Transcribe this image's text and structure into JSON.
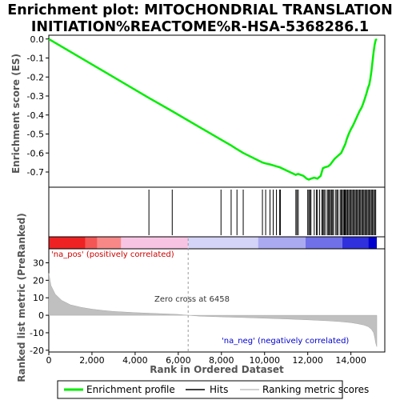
{
  "chart_data": {
    "type": "line",
    "title_lines": [
      "Enrichment plot: MITOCHONDRIAL TRANSLATION",
      "INITIATION%REACTOME%R-HSA-5368286.1"
    ],
    "top_panel": {
      "ylabel": "Enrichment score (ES)",
      "ylim": [
        -0.78,
        0.02
      ],
      "yticks": [
        {
          "value": 0.0,
          "label": "0.0"
        },
        {
          "value": -0.1,
          "label": "-0.1"
        },
        {
          "value": -0.2,
          "label": "-0.2"
        },
        {
          "value": -0.3,
          "label": "-0.3"
        },
        {
          "value": -0.4,
          "label": "-0.4"
        },
        {
          "value": -0.5,
          "label": "-0.5"
        },
        {
          "value": -0.6,
          "label": "-0.6"
        },
        {
          "value": -0.7,
          "label": "-0.7"
        }
      ],
      "series": [
        {
          "name": "Enrichment profile",
          "color": "#00ee00",
          "x": [
            0,
            4640,
            5720,
            7980,
            8450,
            8720,
            9010,
            9900,
            10050,
            10250,
            10400,
            10550,
            10700,
            11450,
            11500,
            11560,
            11800,
            11950,
            12050,
            12150,
            12300,
            12450,
            12600,
            12700,
            12800,
            12950,
            13050,
            13150,
            13250,
            13350,
            13450,
            13550,
            13650,
            13750,
            13800,
            13900,
            14000,
            14100,
            14200,
            14300,
            14400,
            14500,
            14600,
            14700,
            14800,
            14850,
            14900,
            14950,
            15000,
            15050,
            15100,
            15150,
            15200
          ],
          "y": [
            0.0,
            -0.31,
            -0.38,
            -0.53,
            -0.56,
            -0.58,
            -0.6,
            -0.65,
            -0.655,
            -0.66,
            -0.665,
            -0.67,
            -0.675,
            -0.715,
            -0.712,
            -0.71,
            -0.72,
            -0.735,
            -0.74,
            -0.735,
            -0.73,
            -0.735,
            -0.72,
            -0.68,
            -0.675,
            -0.67,
            -0.66,
            -0.645,
            -0.63,
            -0.62,
            -0.61,
            -0.6,
            -0.575,
            -0.55,
            -0.53,
            -0.5,
            -0.475,
            -0.455,
            -0.43,
            -0.405,
            -0.38,
            -0.36,
            -0.33,
            -0.295,
            -0.255,
            -0.24,
            -0.21,
            -0.17,
            -0.12,
            -0.07,
            -0.03,
            -0.005,
            0.0
          ]
        }
      ]
    },
    "hits_panel": {
      "series_name": "Hits",
      "color": "#000000",
      "positions": [
        4640,
        5720,
        7980,
        8450,
        8720,
        9010,
        9900,
        10050,
        10250,
        10400,
        10550,
        10700,
        10730,
        11450,
        11500,
        11560,
        12000,
        12050,
        12100,
        12150,
        12300,
        12400,
        12450,
        12550,
        12650,
        12700,
        12750,
        12800,
        12900,
        12950,
        13000,
        13050,
        13100,
        13150,
        13200,
        13300,
        13350,
        13400,
        13500,
        13550,
        13600,
        13650,
        13700,
        13720,
        13750,
        13800,
        13850,
        13900,
        13950,
        14000,
        14050,
        14100,
        14150,
        14200,
        14250,
        14300,
        14350,
        14400,
        14450,
        14500,
        14550,
        14600,
        14650,
        14700,
        14750,
        14800,
        14850,
        14900,
        14950,
        15000,
        15050,
        15100,
        15150
      ]
    },
    "ranked_panel": {
      "ylabel": "Ranked list metric (PreRanked)",
      "xlabel": "Rank in Ordered Dataset",
      "ylim": [
        -21,
        38
      ],
      "yticks": [
        {
          "value": 30,
          "label": "30"
        },
        {
          "value": 20,
          "label": "20"
        },
        {
          "value": 10,
          "label": "10"
        },
        {
          "value": 0,
          "label": "0"
        },
        {
          "value": -10,
          "label": "-10"
        },
        {
          "value": -20,
          "label": "-20"
        }
      ],
      "series_name": "Ranking metric scores",
      "color": "#c0c0c0",
      "x": [
        0,
        100,
        300,
        600,
        1000,
        1500,
        2000,
        2500,
        3000,
        4000,
        5000,
        6000,
        6458,
        7000,
        8000,
        9000,
        10000,
        11000,
        12000,
        13000,
        13500,
        14000,
        14300,
        14600,
        14800,
        14950,
        15050,
        15100,
        15150,
        15200
      ],
      "y": [
        24,
        17,
        12,
        8.5,
        6,
        4.5,
        3.5,
        2.8,
        2.2,
        1.5,
        1.0,
        0.5,
        0.0,
        -0.5,
        -0.9,
        -1.3,
        -1.7,
        -2.1,
        -2.6,
        -3.2,
        -3.6,
        -4.2,
        -4.8,
        -5.6,
        -6.5,
        -8,
        -10,
        -12.5,
        -16,
        -18
      ],
      "zero_cross_label": "Zero cross at 6458",
      "zero_cross": 6458,
      "pos_label": "'na_pos' (positively correlated)",
      "neg_label": "'na_neg' (negatively correlated)",
      "pos_color": "#cc0000",
      "neg_color": "#0000cc"
    },
    "color_bar": {
      "segments": [
        {
          "from": 0,
          "to": 1700,
          "color": "#ee2222"
        },
        {
          "from": 1700,
          "to": 2250,
          "color": "#f45555"
        },
        {
          "from": 2250,
          "to": 3350,
          "color": "#f88888"
        },
        {
          "from": 3350,
          "to": 6458,
          "color": "#f8c4e4"
        },
        {
          "from": 6458,
          "to": 9700,
          "color": "#d4d4f8"
        },
        {
          "from": 9700,
          "to": 11900,
          "color": "#aaaaf0"
        },
        {
          "from": 11900,
          "to": 13600,
          "color": "#7070e8"
        },
        {
          "from": 13600,
          "to": 14800,
          "color": "#3030dd"
        },
        {
          "from": 14800,
          "to": 15200,
          "color": "#0000cc"
        }
      ]
    },
    "x_axis": {
      "xlim": [
        0,
        15200
      ],
      "xticks": [
        {
          "value": 0,
          "label": "0"
        },
        {
          "value": 2000,
          "label": "2,000"
        },
        {
          "value": 4000,
          "label": "4,000"
        },
        {
          "value": 6000,
          "label": "6,000"
        },
        {
          "value": 8000,
          "label": "8,000"
        },
        {
          "value": 10000,
          "label": "10,000"
        },
        {
          "value": 12000,
          "label": "12,000"
        },
        {
          "value": 14000,
          "label": "14,000"
        }
      ]
    },
    "legend": {
      "placement": "bottom",
      "items": [
        {
          "label": "Enrichment profile",
          "color": "#00ee00",
          "style": "thick"
        },
        {
          "label": "Hits",
          "color": "#000000",
          "style": "thin"
        },
        {
          "label": "Ranking metric scores",
          "color": "#c0c0c0",
          "style": "thin"
        }
      ]
    }
  }
}
